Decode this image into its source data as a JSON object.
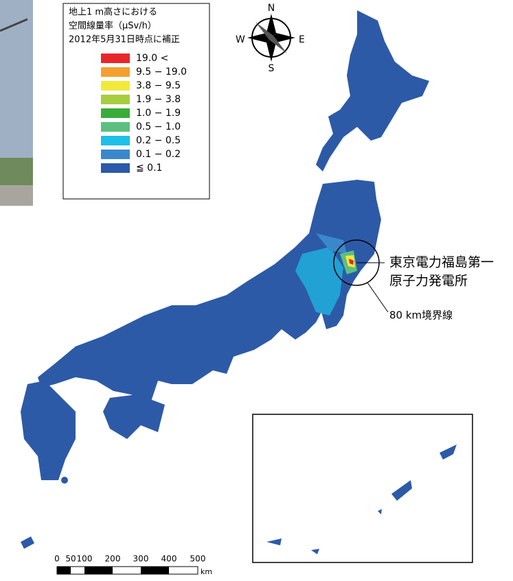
{
  "legend": {
    "title_lines": [
      "地上1 m高さにおける",
      "空間線量率（μSv/h）",
      "2012年5月31日時点に補正"
    ],
    "items": [
      {
        "label": "19.0 <",
        "color": "#e8262a"
      },
      {
        "label": "9.5 − 19.0",
        "color": "#f4a030"
      },
      {
        "label": "3.8 −   9.5",
        "color": "#f2ea3a"
      },
      {
        "label": "1.9 −   3.8",
        "color": "#a8cc40"
      },
      {
        "label": "1.0 −   1.9",
        "color": "#3aac3a"
      },
      {
        "label": "0.5 −   1.0",
        "color": "#5cbf80"
      },
      {
        "label": "0.2 −   0.5",
        "color": "#1ebfe8"
      },
      {
        "label": "0.1 −   0.2",
        "color": "#3a88cc"
      },
      {
        "label": "≦ 0.1",
        "color": "#2a5aa8"
      }
    ]
  },
  "compass": {
    "north": "N",
    "south": "S",
    "east": "E",
    "west": "W"
  },
  "annotations": {
    "plant": [
      "東京電力福島第一",
      "原子力発電所"
    ],
    "boundary": "80 km境界線"
  },
  "scale_bar": {
    "labels": [
      "0",
      "50",
      "100",
      "200",
      "300",
      "400",
      "500"
    ],
    "unit": "km"
  }
}
